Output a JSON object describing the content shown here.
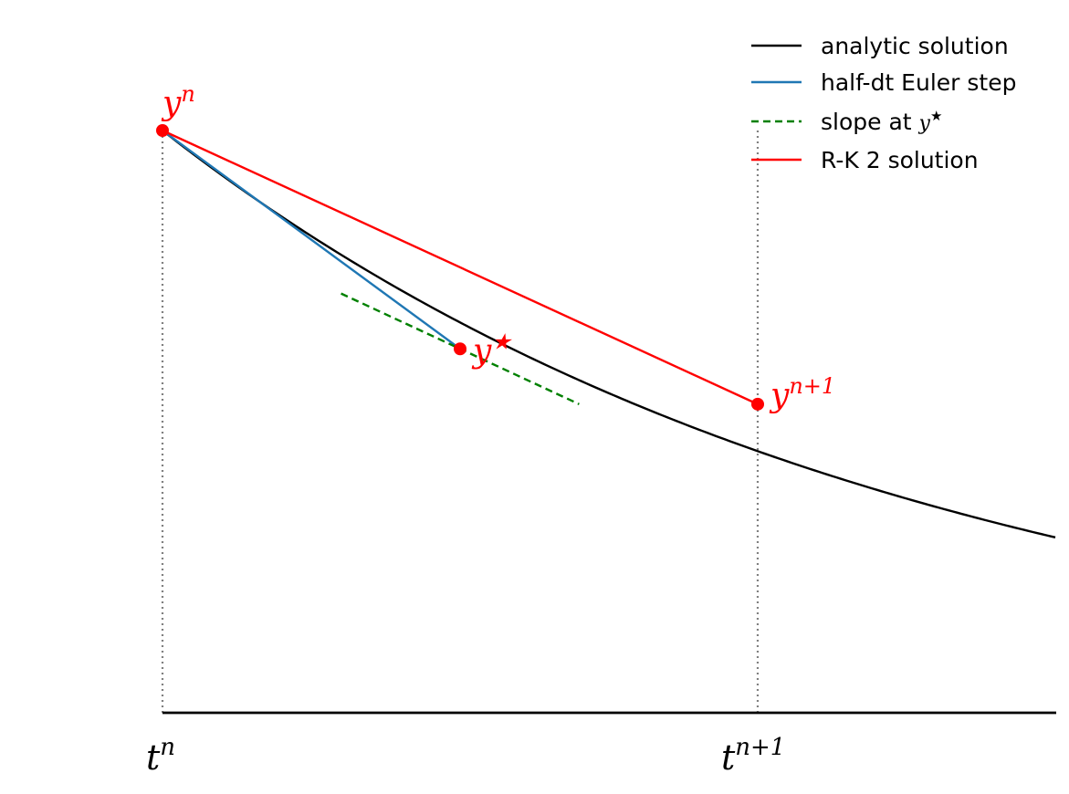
{
  "chart_data": {
    "type": "line",
    "title": "",
    "xlabel": "",
    "ylabel": "",
    "xlim": [
      0,
      1.5
    ],
    "ylim": [
      0,
      1.0
    ],
    "grid": false,
    "legend_position": "top-right",
    "x_ticks": [
      {
        "x": 0.0,
        "base": "t",
        "sup": "n"
      },
      {
        "x": 1.0,
        "base": "t",
        "sup": "n+1"
      }
    ],
    "series": [
      {
        "name": "analytic solution",
        "kind": "curve",
        "color": "#000000",
        "style": "solid",
        "x_range": [
          0.0,
          1.5
        ],
        "function": "y = exp(-0.8 * t)"
      },
      {
        "name": "half-dt Euler step",
        "kind": "segment",
        "color": "#1f77b4",
        "style": "solid",
        "points": [
          [
            0.0,
            1.0
          ],
          [
            0.5,
            0.625
          ]
        ]
      },
      {
        "name": "slope at y*",
        "legend_base": "slope at ",
        "legend_math": "y",
        "legend_sup": "★",
        "kind": "segment",
        "color": "#008000",
        "style": "dashed",
        "points": [
          [
            0.3,
            0.72
          ],
          [
            0.7,
            0.53
          ]
        ]
      },
      {
        "name": "R-K 2 solution",
        "kind": "segment",
        "color": "#ff0000",
        "style": "solid",
        "points": [
          [
            0.0,
            1.0
          ],
          [
            1.0,
            0.53
          ]
        ]
      }
    ],
    "markers": [
      {
        "label_base": "y",
        "label_sup": "n",
        "x": 0.0,
        "y": 1.0,
        "color": "#ff0000"
      },
      {
        "label_base": "y",
        "label_sup": "★",
        "x": 0.5,
        "y": 0.625,
        "color": "#ff0000"
      },
      {
        "label_base": "y",
        "label_sup": "n+1",
        "x": 1.0,
        "y": 0.53,
        "color": "#ff0000"
      }
    ],
    "guides": [
      {
        "x": 0.0,
        "y_top": 1.0,
        "color": "#808080",
        "style": "dotted"
      },
      {
        "x": 1.0,
        "y_top": 1.0,
        "color": "#808080",
        "style": "dotted"
      }
    ]
  }
}
